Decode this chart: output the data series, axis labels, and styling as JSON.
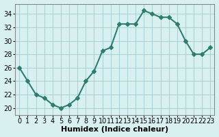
{
  "x": [
    0,
    1,
    2,
    3,
    4,
    5,
    6,
    7,
    8,
    9,
    10,
    11,
    12,
    13,
    14,
    15,
    16,
    17,
    18,
    19,
    20,
    21,
    22,
    23
  ],
  "y": [
    26,
    24,
    22,
    21.5,
    20.5,
    20,
    20.5,
    21.5,
    24,
    25.5,
    28.5,
    29,
    32.5,
    32.5,
    32.5,
    34.5,
    34,
    33.5,
    33.5,
    32.5,
    30,
    28,
    28,
    29
  ],
  "line_color": "#2e7d6e",
  "marker": "D",
  "marker_size": 3,
  "line_width": 1.5,
  "bg_color": "#d8f0f0",
  "grid_color": "#aad4d4",
  "xlabel": "Humidex (Indice chaleur)",
  "xlim": [
    -0.5,
    23.5
  ],
  "ylim": [
    19,
    35.5
  ],
  "yticks": [
    20,
    22,
    24,
    26,
    28,
    30,
    32,
    34
  ],
  "xticks": [
    0,
    1,
    2,
    3,
    4,
    5,
    6,
    7,
    8,
    9,
    10,
    11,
    12,
    13,
    14,
    15,
    16,
    17,
    18,
    19,
    20,
    21,
    22,
    23
  ],
  "tick_fontsize": 7,
  "xlabel_fontsize": 8
}
